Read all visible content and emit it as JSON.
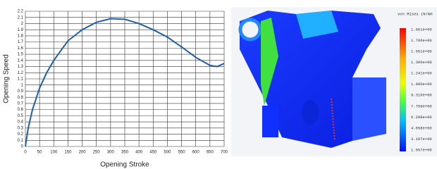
{
  "chart_data": {
    "type": "line",
    "x_label": "Opening Stroke",
    "y_label": "Opening Speed",
    "x": [
      0,
      10,
      25,
      50,
      75,
      100,
      150,
      200,
      250,
      300,
      350,
      400,
      450,
      500,
      550,
      600,
      650,
      675,
      700
    ],
    "series": [
      {
        "color": "#1f5fa8",
        "values": [
          0,
          0.3,
          0.6,
          0.95,
          1.2,
          1.4,
          1.72,
          1.9,
          2.02,
          2.08,
          2.07,
          2.0,
          1.9,
          1.78,
          1.62,
          1.45,
          1.32,
          1.3,
          1.35
        ]
      }
    ],
    "xlim": [
      0,
      700
    ],
    "xticks": [
      0,
      50,
      100,
      150,
      200,
      250,
      300,
      350,
      400,
      450,
      500,
      550,
      600,
      650,
      700
    ],
    "ylim": [
      0,
      2.2
    ],
    "yticks": [
      0,
      0.1,
      0.2,
      0.3,
      0.4,
      0.5,
      0.6,
      0.7,
      0.8,
      0.9,
      1,
      1.1,
      1.2,
      1.3,
      1.4,
      1.5,
      1.6,
      1.7,
      1.8,
      1.9,
      2,
      2.1,
      2.2
    ],
    "grid": true
  },
  "fea_image": {
    "legend_title": "von Mises (N/mm",
    "legend_labels": [
      "1.861e+00",
      "1.706e+00",
      "1.551e+00",
      "1.396e+00",
      "1.241e+00",
      "1.086e+00",
      "9.310e+00",
      "7.759e+00",
      "6.208e+00",
      "4.658e+00",
      "3.107e+00",
      "1.557e+00"
    ]
  }
}
